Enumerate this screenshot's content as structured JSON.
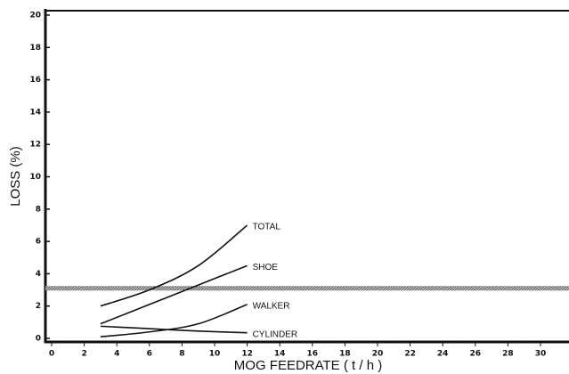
{
  "chart_data": {
    "type": "line",
    "xlabel": "MOG FEEDRATE ( t / h )",
    "ylabel": "LOSS (%)",
    "x": [
      3,
      6,
      9,
      12
    ],
    "series": [
      {
        "name": "TOTAL",
        "color": "#111111",
        "values": [
          2.0,
          3.0,
          4.5,
          7.0
        ]
      },
      {
        "name": "SHOE",
        "color": "#111111",
        "values": [
          0.9,
          2.1,
          3.3,
          4.5
        ]
      },
      {
        "name": "WALKER",
        "color": "#111111",
        "values": [
          0.1,
          0.4,
          0.9,
          2.1
        ]
      },
      {
        "name": "CYLINDER",
        "color": "#111111",
        "values": [
          0.75,
          0.6,
          0.45,
          0.35
        ]
      }
    ],
    "reference_line": 3.1,
    "xlim": [
      0,
      31.75
    ],
    "xticks": [
      0,
      2,
      4,
      6,
      8,
      10,
      12,
      14,
      16,
      18,
      20,
      22,
      24,
      26,
      28,
      30
    ],
    "ylim": [
      0,
      20
    ],
    "yticks": [
      0,
      2,
      4,
      6,
      8,
      10,
      12,
      14,
      16,
      18,
      20
    ],
    "grid": false
  }
}
